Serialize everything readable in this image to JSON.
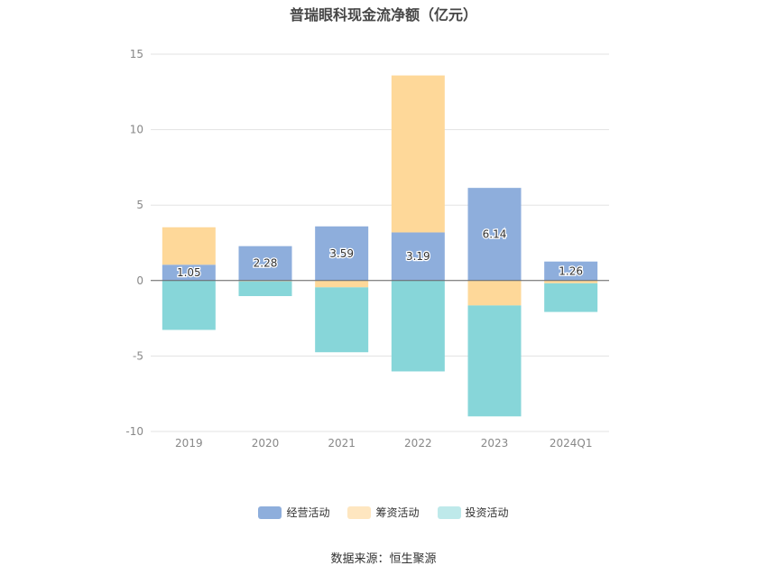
{
  "chart_data": {
    "type": "bar",
    "stacked": true,
    "title": "普瑞眼科现金流净额（亿元）",
    "source": "数据来源：恒生聚源",
    "categories": [
      "2019",
      "2020",
      "2021",
      "2022",
      "2023",
      "2024Q1"
    ],
    "ylim": [
      -10,
      15
    ],
    "yticks": [
      15,
      10,
      5,
      0,
      -5,
      -10
    ],
    "grid": true,
    "legend_position": "bottom",
    "series": [
      {
        "name": "经营活动",
        "color": "#8eaedc",
        "values": [
          1.05,
          2.28,
          3.59,
          3.19,
          6.14,
          1.26
        ],
        "labels": [
          "1.05",
          "2.28",
          "3.59",
          "3.19",
          "6.14",
          "1.26"
        ]
      },
      {
        "name": "筹资活动",
        "color": "#fed899",
        "values": [
          2.48,
          -0.05,
          -0.45,
          10.4,
          -1.65,
          -0.18
        ]
      },
      {
        "name": "投资活动",
        "color": "#87d6d9",
        "values": [
          -3.27,
          -0.98,
          -4.3,
          -6.02,
          -7.35,
          -1.9
        ]
      }
    ],
    "legend_colors": [
      "#8eaedc",
      "#fee6c0",
      "#bee9ea"
    ]
  }
}
